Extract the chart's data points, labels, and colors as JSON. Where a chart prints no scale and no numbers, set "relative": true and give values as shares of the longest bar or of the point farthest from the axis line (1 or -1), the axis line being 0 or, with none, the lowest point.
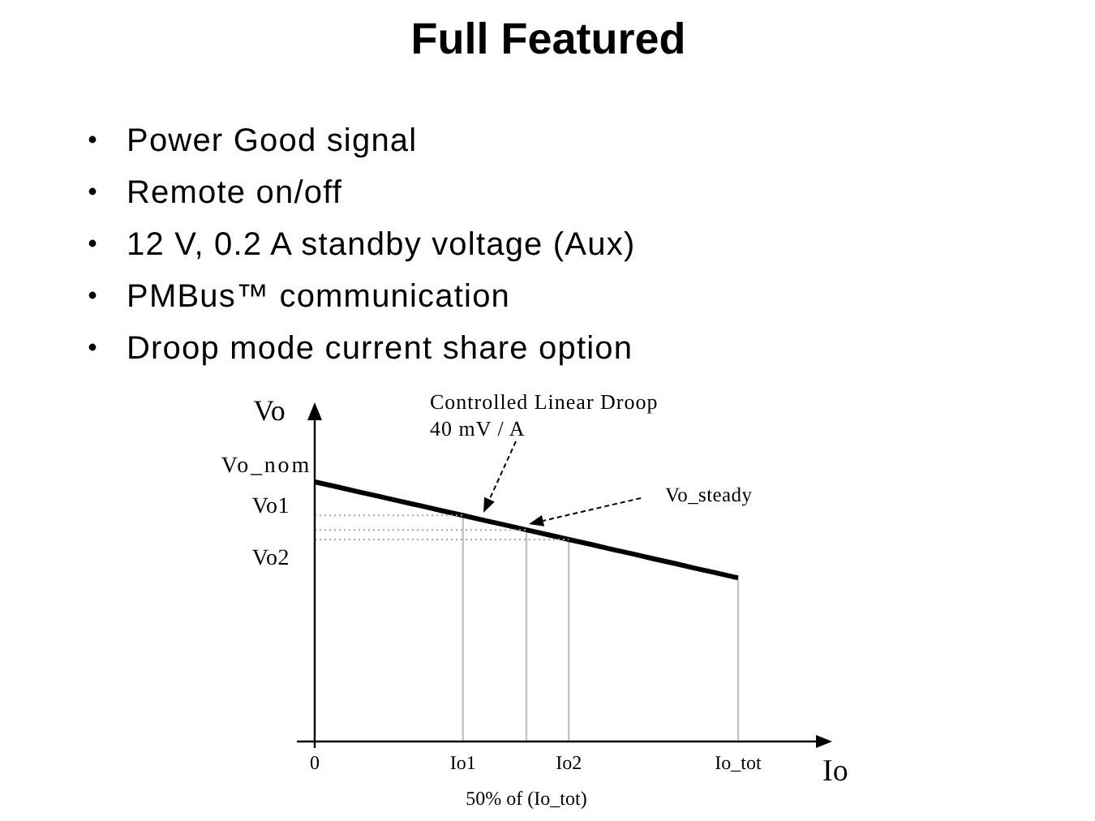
{
  "chart_data": {
    "type": "line",
    "title": "Full Featured",
    "xlabel": "Io",
    "ylabel": "Vo",
    "relative": true,
    "categories": [
      "0",
      null,
      null,
      null,
      null,
      null,
      null,
      "Io1",
      null,
      null,
      "50% of (Io_tot)",
      null,
      "Io2",
      null,
      null,
      null,
      null,
      null,
      null,
      null,
      "Io_tot"
    ],
    "series": [
      {
        "color": "#000000",
        "values": [
          1,
          0.982,
          0.963,
          0.945,
          0.926,
          0.908,
          0.889,
          0.871,
          0.852,
          0.834,
          0.815,
          0.797,
          0.778,
          0.76,
          0.741,
          0.723,
          0.704,
          0.686,
          0.667,
          0.649,
          0.63
        ]
      },
      {
        "color": "#a6a6a6",
        "line_style": "dotted",
        "values": [
          0.871,
          0.871,
          0.871,
          0.871,
          0.871,
          0.871,
          0.871,
          0.871,
          null,
          null,
          null,
          null,
          null,
          null,
          null,
          null,
          null,
          null,
          null,
          null,
          null
        ]
      },
      {
        "color": "#a6a6a6",
        "line_style": "dotted",
        "values": [
          0.815,
          0.815,
          0.815,
          0.815,
          0.815,
          0.815,
          0.815,
          0.815,
          0.815,
          0.815,
          0.815,
          null,
          null,
          null,
          null,
          null,
          null,
          null,
          null,
          null,
          null
        ]
      },
      {
        "color": "#a6a6a6",
        "line_style": "dotted",
        "values": [
          0.778,
          0.778,
          0.778,
          0.778,
          0.778,
          0.778,
          0.778,
          0.778,
          0.778,
          0.778,
          0.778,
          0.778,
          0.778,
          null,
          null,
          null,
          null,
          null,
          null,
          null,
          null
        ]
      },
      {
        "type": "bar",
        "color": "#c4c4c4",
        "values": [
          null,
          null,
          null,
          null,
          null,
          null,
          null,
          0.871,
          null,
          null,
          0.815,
          null,
          0.778,
          null,
          null,
          null,
          null,
          null,
          null,
          null,
          0.63
        ]
      }
    ],
    "tick_labels": "x",
    "line_style": "solid",
    "annotations": [
      "Power Good signal",
      "Remote on/off",
      "12 V, 0.2 A standby voltage (Aux)",
      "PMBus™ communication",
      "Droop mode current share option",
      "Controlled Linear Droop\n40 mV / A",
      "Vo_steady",
      "Vo_nom",
      "Vo1",
      "Vo2"
    ]
  }
}
